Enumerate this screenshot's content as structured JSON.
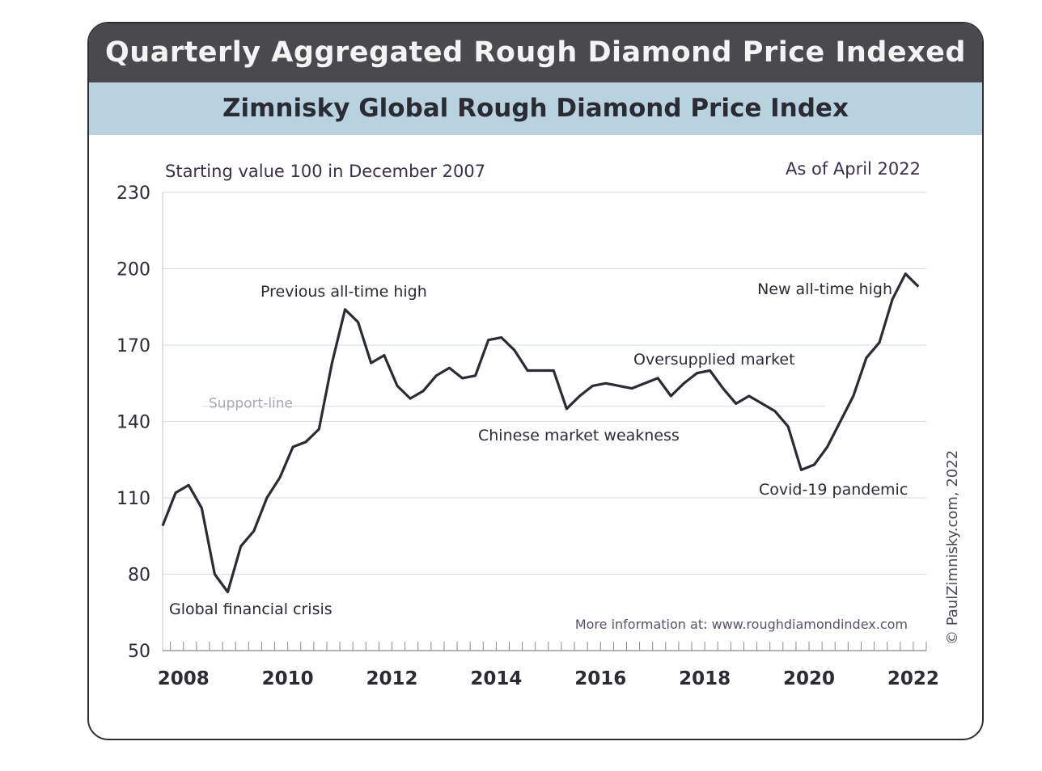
{
  "header": {
    "title": "Quarterly Aggregated Rough Diamond Price Indexed",
    "subtitle": "Zimnisky Global Rough Diamond Price Index"
  },
  "notes": {
    "starting_value": "Starting value 100 in December 2007",
    "as_of": "As of April 2022",
    "more_info": "More information at: www.roughdiamondindex.com",
    "copyright": "© PaulZimnisky.com, 2022"
  },
  "colors": {
    "header_bg": "#4a4a4e",
    "subheader_bg": "#b8d3df",
    "line": "#2b2b33",
    "grid": "#d6dce0"
  },
  "chart_data": {
    "type": "line",
    "title": "Zimnisky Global Rough Diamond Price Index",
    "xlabel": "",
    "ylabel": "",
    "ylim": [
      50,
      230
    ],
    "yticks": [
      50,
      80,
      110,
      140,
      170,
      200,
      230
    ],
    "xticks": [
      2008,
      2010,
      2012,
      2014,
      2016,
      2018,
      2020,
      2022
    ],
    "xlim": [
      2007.6,
      2022.25
    ],
    "grid": "horizontal",
    "series": [
      {
        "x": [
          2007.6,
          2007.85,
          2008.1,
          2008.35,
          2008.6,
          2008.85,
          2009.1,
          2009.35,
          2009.6,
          2009.85,
          2010.1,
          2010.35,
          2010.6,
          2010.85,
          2011.1,
          2011.35,
          2011.6,
          2011.85,
          2012.1,
          2012.35,
          2012.6,
          2012.85,
          2013.1,
          2013.35,
          2013.6,
          2013.85,
          2014.1,
          2014.35,
          2014.6,
          2014.85,
          2015.1,
          2015.35,
          2015.6,
          2015.85,
          2016.1,
          2016.35,
          2016.6,
          2016.85,
          2017.1,
          2017.35,
          2017.6,
          2017.85,
          2018.1,
          2018.35,
          2018.6,
          2018.85,
          2019.1,
          2019.35,
          2019.6,
          2019.85,
          2020.1,
          2020.35,
          2020.6,
          2020.85,
          2021.1,
          2021.35,
          2021.6,
          2021.85,
          2022.1
        ],
        "values": [
          99,
          112,
          115,
          106,
          80,
          73,
          91,
          97,
          110,
          118,
          130,
          132,
          137,
          163,
          184,
          179,
          163,
          166,
          154,
          149,
          152,
          158,
          161,
          157,
          158,
          172,
          173,
          168,
          160,
          160,
          160,
          145,
          150,
          154,
          155,
          154,
          153,
          155,
          157,
          150,
          155,
          159,
          160,
          153,
          147,
          150,
          147,
          144,
          138,
          121,
          123,
          130,
          140,
          150,
          165,
          171,
          188,
          198,
          193
        ]
      }
    ],
    "support_line": {
      "value": 146,
      "label": "Support-line"
    },
    "annotations": [
      "Previous all-time high",
      "Global financial crisis",
      "Chinese market weakness",
      "Oversupplied market",
      "Covid-19 pandemic",
      "New all-time high"
    ]
  }
}
